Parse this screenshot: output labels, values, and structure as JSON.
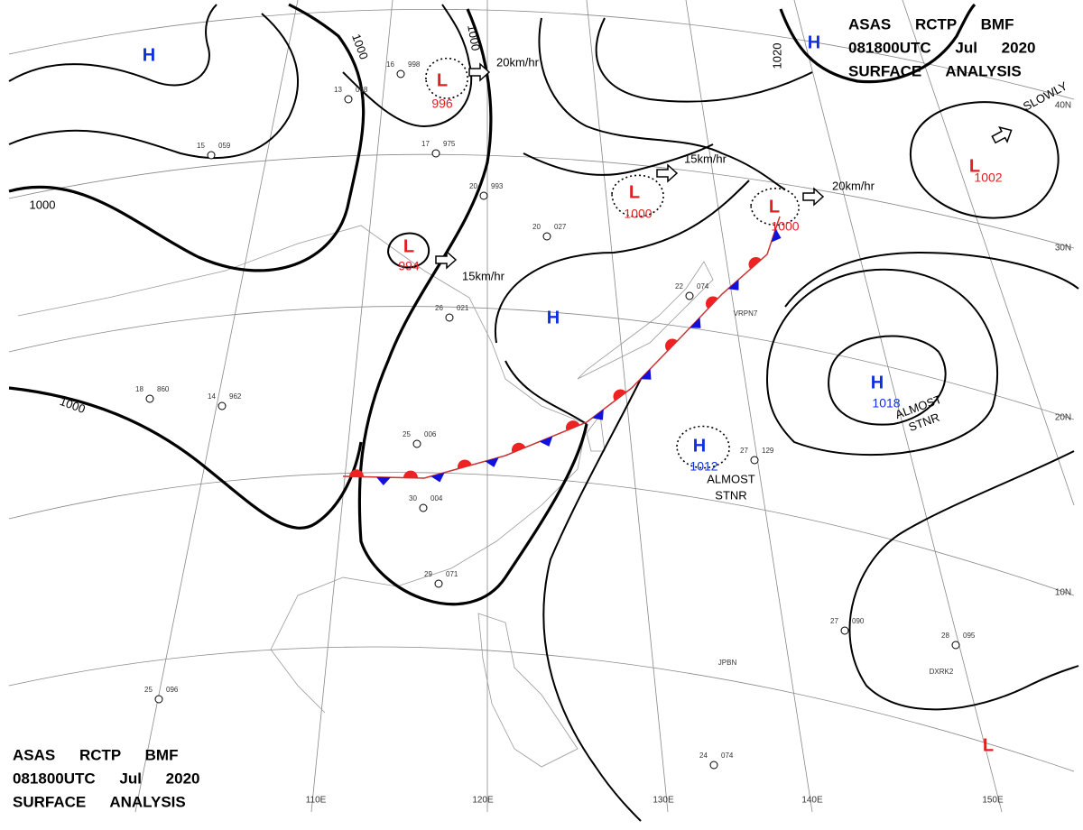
{
  "header_top": {
    "line1": "ASAS RCTP BMF",
    "line2": "081800UTC Jul 2020",
    "line3": "SURFACE ANALYSIS"
  },
  "header_bottom": {
    "line1": "ASAS RCTP BMF",
    "line2": "081800UTC Jul 2020",
    "line3": "SURFACE ANALYSIS"
  },
  "pressure_centers": [
    {
      "symbol": "H"
    },
    {
      "symbol": "H"
    },
    {
      "symbol": "L",
      "value": "996"
    },
    {
      "symbol": "L",
      "value": "994"
    },
    {
      "symbol": "L",
      "value": "1000"
    },
    {
      "symbol": "L",
      "value": "1000"
    },
    {
      "symbol": "L",
      "value": "1002"
    },
    {
      "symbol": "H"
    },
    {
      "symbol": "H",
      "value": "1018"
    },
    {
      "symbol": "H",
      "value": "1012"
    },
    {
      "symbol": "L"
    }
  ],
  "motions": [
    "20km/hr",
    "15km/hr",
    "15km/hr",
    "20km/hr",
    "SLOWLY"
  ],
  "isobar_labels": [
    "1000",
    "1000",
    "1000",
    "1000",
    "1020"
  ],
  "notes": [
    {
      "line1": "ALMOST",
      "line2": "STNR"
    },
    {
      "line1": "ALMOST",
      "line2": "STNR"
    }
  ],
  "latitudes": [
    "40N",
    "30N",
    "20N",
    "10N"
  ],
  "longitudes": [
    "110E",
    "120E",
    "130E",
    "140E",
    "150E"
  ],
  "ships": [
    "VRPN7",
    "JPBN",
    "DXRK2"
  ],
  "stations": [
    {
      "temp": "16",
      "pres": "998"
    },
    {
      "temp": "13",
      "pres": "068"
    },
    {
      "temp": "15",
      "pres": "059"
    },
    {
      "temp": "17",
      "pres": "975"
    },
    {
      "temp": "20",
      "pres": "993"
    },
    {
      "temp": "20",
      "pres": "027"
    },
    {
      "temp": "26",
      "pres": "021"
    },
    {
      "temp": "25",
      "pres": "006"
    },
    {
      "temp": "30",
      "pres": "004"
    },
    {
      "temp": "29",
      "pres": "071"
    },
    {
      "temp": "27",
      "pres": "090"
    },
    {
      "temp": "24",
      "pres": "074"
    },
    {
      "temp": "28",
      "pres": "095"
    },
    {
      "temp": "22",
      "pres": "074"
    },
    {
      "temp": "27",
      "pres": "129"
    },
    {
      "temp": "14",
      "pres": "962"
    },
    {
      "temp": "18",
      "pres": "860"
    },
    {
      "temp": "25",
      "pres": "096"
    }
  ]
}
